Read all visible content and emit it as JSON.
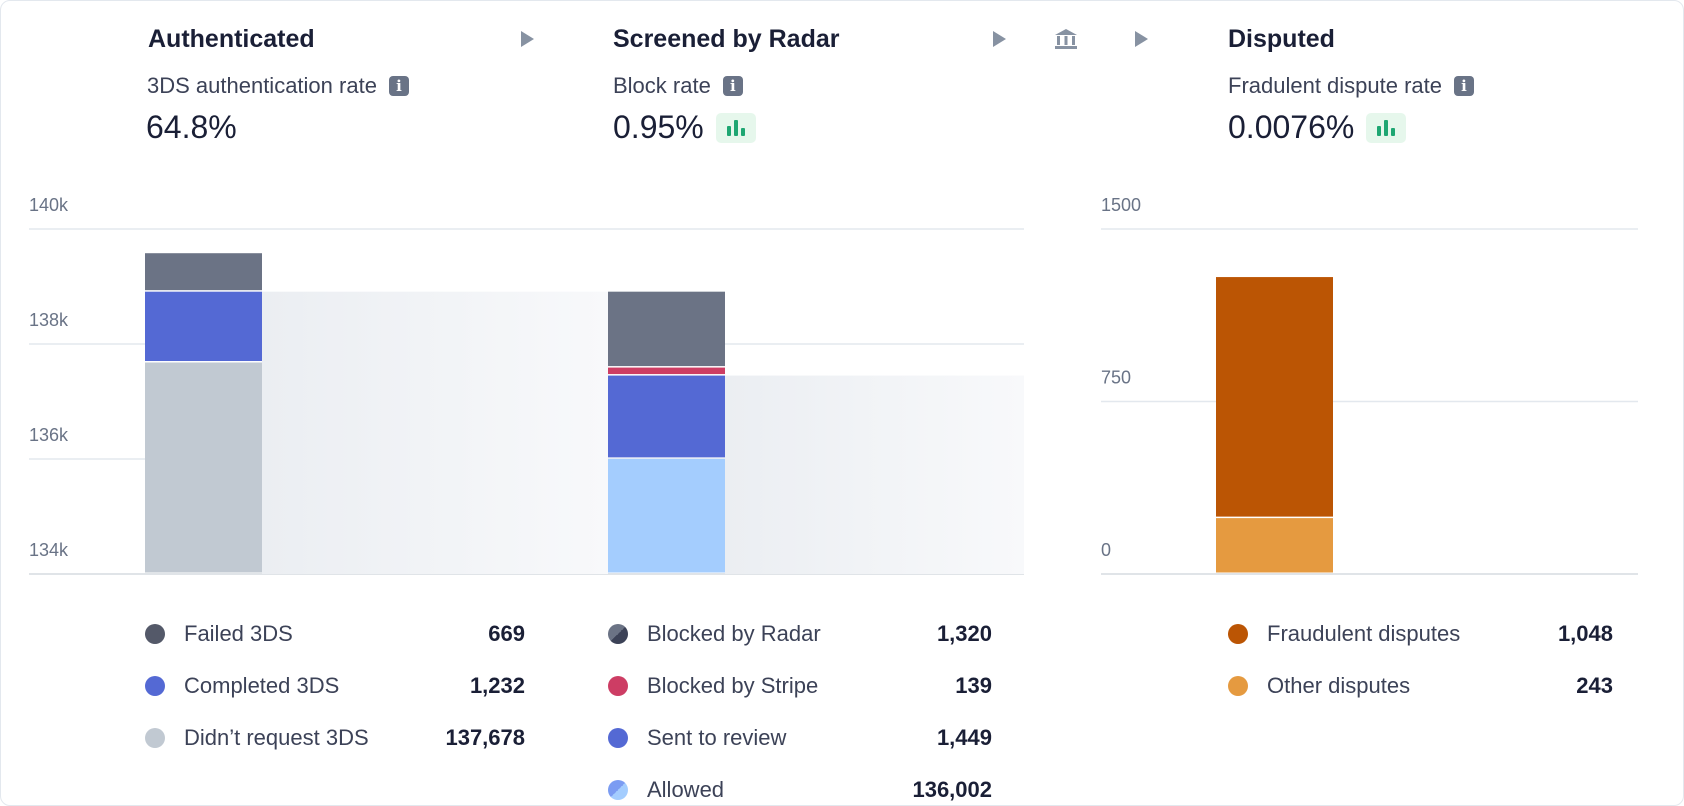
{
  "stages": [
    {
      "title": "Authenticated",
      "metric_label": "3DS authentication rate",
      "metric_value": "64.8%",
      "legend": [
        {
          "name": "Failed 3DS",
          "value": "669",
          "color": "#545969"
        },
        {
          "name": "Completed 3DS",
          "value": "1,232",
          "color": "#5469d4"
        },
        {
          "name": "Didn’t request 3DS",
          "value": "137,678",
          "color": "#c1c9d2"
        }
      ]
    },
    {
      "title": "Screened by Radar",
      "metric_label": "Block rate",
      "metric_value": "0.95%",
      "legend": [
        {
          "name": "Blocked by Radar",
          "value": "1,320",
          "color": "#3c4257"
        },
        {
          "name": "Blocked by Stripe",
          "value": "139",
          "color": "#cd3d64"
        },
        {
          "name": "Sent to review",
          "value": "1,449",
          "color": "#5469d4"
        },
        {
          "name": "Allowed",
          "value": "136,002",
          "color": "#7b9cf2"
        }
      ]
    },
    {
      "title": "Disputed",
      "metric_label": "Fradulent dispute rate",
      "metric_value": "0.0076%",
      "legend": [
        {
          "name": "Fraudulent disputes",
          "value": "1,048",
          "color": "#bb5504"
        },
        {
          "name": "Other disputes",
          "value": "243",
          "color": "#e59a40"
        }
      ]
    }
  ],
  "chart_data": [
    {
      "type": "bar",
      "stacked": true,
      "ylim": [
        134000,
        140000
      ],
      "yticks": [
        134000,
        136000,
        138000,
        140000
      ],
      "ytick_labels": [
        "134k",
        "136k",
        "138k",
        "140k"
      ],
      "grid": true,
      "categories": [
        "Authenticated",
        "Screened by Radar"
      ],
      "bars": [
        {
          "category": "Authenticated",
          "segments": [
            {
              "name": "Didn’t request 3DS",
              "value": 137678,
              "color": "#c1c9d2"
            },
            {
              "name": "Completed 3DS",
              "value": 1232,
              "color": "#5469d4"
            },
            {
              "name": "Failed 3DS",
              "value": 669,
              "color": "#6b7385"
            }
          ]
        },
        {
          "category": "Screened by Radar",
          "segments": [
            {
              "name": "Allowed",
              "value": 136002,
              "color": "#a4cdfe"
            },
            {
              "name": "Sent to review",
              "value": 1449,
              "color": "#5469d4"
            },
            {
              "name": "Blocked by Stripe",
              "value": 139,
              "color": "#cd3d64"
            },
            {
              "name": "Blocked by Radar",
              "value": 1320,
              "color": "#6b7385"
            }
          ]
        }
      ]
    },
    {
      "type": "bar",
      "stacked": true,
      "ylim": [
        0,
        1500
      ],
      "yticks": [
        0,
        750,
        1500
      ],
      "ytick_labels": [
        "0",
        "750",
        "1500"
      ],
      "grid": true,
      "categories": [
        "Disputed"
      ],
      "bars": [
        {
          "category": "Disputed",
          "segments": [
            {
              "name": "Other disputes",
              "value": 243,
              "color": "#e59a40"
            },
            {
              "name": "Fraudulent disputes",
              "value": 1048,
              "color": "#bb5504"
            }
          ]
        }
      ]
    }
  ]
}
